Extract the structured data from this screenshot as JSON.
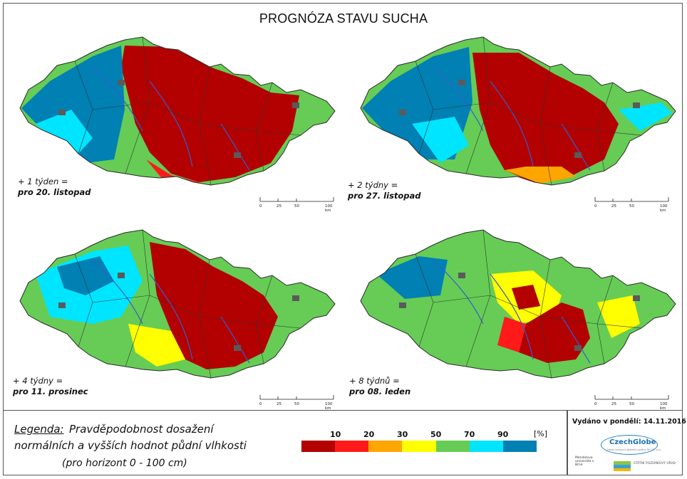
{
  "title": "PROGNÓZA STAVU SUCHA",
  "maps": [
    {
      "line1": "+ 1 týden =",
      "line2": "pro 20. listopad"
    },
    {
      "line1": "+ 2 týdny =",
      "line2": "pro 27. listopad"
    },
    {
      "line1": "+ 4 týdny =",
      "line2": "pro 11. prosinec"
    },
    {
      "line1": "+ 8 týdnů =",
      "line2": "pro 08. leden"
    }
  ],
  "scalebar": {
    "t0": "0",
    "t1": "25",
    "t2": "50",
    "t3": "100 km"
  },
  "legend": {
    "heading": "Legenda:",
    "line1": "Pravděpodobnost dosažení",
    "line2": "normálních a vyšších hodnot půdní vlhkosti",
    "line3": "(pro horizont 0 - 100 cm)",
    "unit": "[%]",
    "ticks": [
      "10",
      "20",
      "30",
      "50",
      "70",
      "90"
    ],
    "colors": [
      "#b30000",
      "#ff1a1a",
      "#ffa500",
      "#ffff00",
      "#66cc55",
      "#00e5ff",
      "#0080b3"
    ]
  },
  "issued": "Vydáno v pondělí: 14.11.2016",
  "logos": {
    "czechglobe": "CzechGlobe",
    "czechglobe_small": "Ústav výzkumu globální změny AV ČR, v.v.i.",
    "mendel": "Mendelova univerzita v Brně",
    "spu": "STÁTNÍ POZEMKOVÝ ÚŘAD"
  },
  "palette": {
    "outline": "#2a2a2a",
    "river": "#2f5fd0",
    "city": "#5a5a5a"
  }
}
